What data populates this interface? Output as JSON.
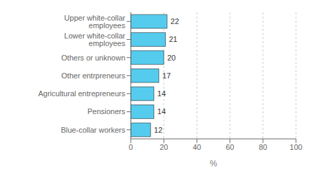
{
  "chart_data": {
    "type": "bar",
    "orientation": "horizontal",
    "categories": [
      "Blue-collar workers",
      "Pensioners",
      "Agricultural entrepreneurs",
      "Other entrpreneurs",
      "Others or unknown",
      "Lower white-collar employees",
      "Upper white-collar employees"
    ],
    "values": [
      12,
      14,
      14,
      17,
      20,
      21,
      22
    ],
    "color": "#55CCEE",
    "xlabel": "%",
    "xlim": [
      0,
      100
    ],
    "xticks": [
      0,
      20,
      40,
      60,
      80,
      100
    ],
    "grid": true,
    "data_labels": true
  }
}
